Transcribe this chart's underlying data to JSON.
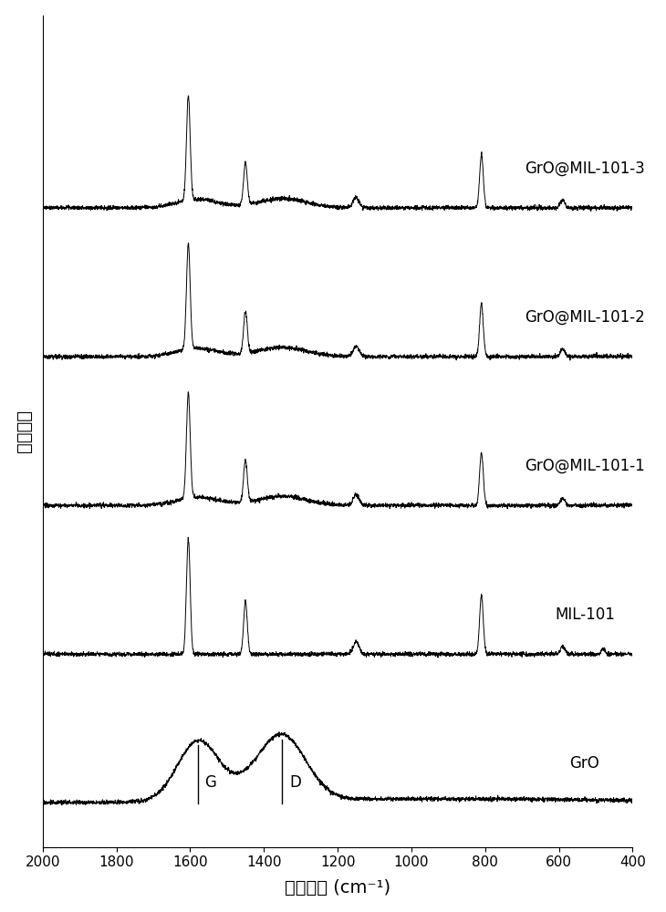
{
  "xlabel": "拉曼频移 (cm⁻¹)",
  "ylabel": "信号强度",
  "xlim": [
    2000,
    400
  ],
  "xticks": [
    2000,
    1800,
    1600,
    1400,
    1200,
    1000,
    800,
    600,
    400
  ],
  "labels": [
    "GrO",
    "MIL-101",
    "GrO@MIL-101-1",
    "GrO@MIL-101-2",
    "GrO@MIL-101-3"
  ],
  "color": "#000000",
  "background": "#ffffff",
  "linewidth": 0.7,
  "font_size_label": 14,
  "font_size_tick": 11,
  "font_size_annot": 12
}
